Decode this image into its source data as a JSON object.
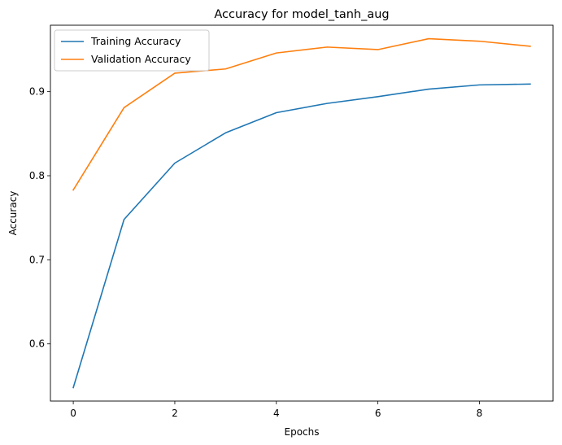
{
  "chart_data": {
    "type": "line",
    "title": "Accuracy for model_tanh_aug",
    "xlabel": "Epochs",
    "ylabel": "Accuracy",
    "x": [
      0,
      1,
      2,
      3,
      4,
      5,
      6,
      7,
      8,
      9
    ],
    "xlim": [
      -0.45,
      9.45
    ],
    "ylim": [
      0.532,
      0.979
    ],
    "xticks": [
      0,
      2,
      4,
      6,
      8
    ],
    "yticks": [
      0.6,
      0.7,
      0.8,
      0.9
    ],
    "xtick_labels": [
      "0",
      "2",
      "4",
      "6",
      "8"
    ],
    "ytick_labels": [
      "0.6",
      "0.7",
      "0.8",
      "0.9"
    ],
    "grid": false,
    "legend_position": "top-left",
    "series": [
      {
        "name": "Training Accuracy",
        "color": "#1f77b4",
        "values": [
          0.548,
          0.748,
          0.815,
          0.851,
          0.875,
          0.886,
          0.894,
          0.903,
          0.908,
          0.909
        ]
      },
      {
        "name": "Validation Accuracy",
        "color": "#ff7f0e",
        "values": [
          0.783,
          0.881,
          0.922,
          0.927,
          0.946,
          0.953,
          0.95,
          0.963,
          0.96,
          0.954
        ]
      }
    ]
  }
}
